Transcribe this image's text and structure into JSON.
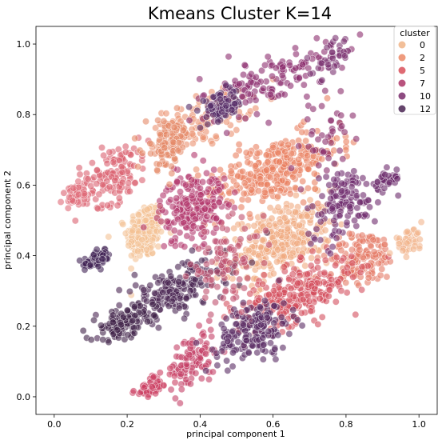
{
  "chart_data": {
    "type": "scatter",
    "title": "Kmeans Cluster K=14",
    "xlabel": "principal component 1",
    "ylabel": "principal component 2",
    "xlim": [
      -0.05,
      1.05
    ],
    "ylim": [
      -0.05,
      1.05
    ],
    "xticks": [
      "0.0",
      "0.2",
      "0.4",
      "0.6",
      "0.8",
      "1.0"
    ],
    "yticks": [
      "0.0",
      "0.2",
      "0.4",
      "0.6",
      "0.8",
      "1.0"
    ],
    "grid": false,
    "legend": {
      "title": "cluster",
      "placement": "top-right",
      "entries": [
        {
          "label": "0",
          "color": "#f0b487"
        },
        {
          "label": "2",
          "color": "#ec8a67"
        },
        {
          "label": "5",
          "color": "#d9505a"
        },
        {
          "label": "7",
          "color": "#ad3567"
        },
        {
          "label": "10",
          "color": "#792b6b"
        },
        {
          "label": "12",
          "color": "#4a2552"
        }
      ]
    },
    "clusters": [
      {
        "id": 0,
        "color": "#f4c194",
        "cx": 0.25,
        "cy": 0.47,
        "sx": 0.025,
        "sy": 0.04,
        "n": 220
      },
      {
        "id": 1,
        "color": "#f0aa80",
        "cx": 0.62,
        "cy": 0.44,
        "sx": 0.07,
        "sy": 0.05,
        "n": 320
      },
      {
        "id": 2,
        "color": "#eb9170",
        "cx": 0.42,
        "cy": 0.79,
        "sx": 0.06,
        "sy": 0.035,
        "n": 120
      },
      {
        "id": 3,
        "color": "#e98060",
        "cx": 0.6,
        "cy": 0.64,
        "sx": 0.09,
        "sy": 0.045,
        "n": 300
      },
      {
        "id": 4,
        "color": "#e57a66",
        "cx": 0.84,
        "cy": 0.39,
        "sx": 0.05,
        "sy": 0.04,
        "n": 140
      },
      {
        "id": 5,
        "color": "#db6070",
        "cx": 0.16,
        "cy": 0.63,
        "sx": 0.05,
        "sy": 0.04,
        "n": 140
      },
      {
        "id": 6,
        "color": "#d44e5e",
        "cx": 0.66,
        "cy": 0.29,
        "sx": 0.08,
        "sy": 0.04,
        "n": 280
      },
      {
        "id": 7,
        "color": "#c54168",
        "cx": 0.38,
        "cy": 0.1,
        "sx": 0.03,
        "sy": 0.04,
        "n": 110
      },
      {
        "id": 8,
        "color": "#b2376c",
        "cx": 0.38,
        "cy": 0.54,
        "sx": 0.045,
        "sy": 0.05,
        "n": 220
      },
      {
        "id": 9,
        "color": "#8c2d6e",
        "cx": 0.58,
        "cy": 0.89,
        "sx": 0.09,
        "sy": 0.04,
        "n": 150
      },
      {
        "id": 10,
        "color": "#6e2a6c",
        "cx": 0.79,
        "cy": 0.55,
        "sx": 0.05,
        "sy": 0.05,
        "n": 130
      },
      {
        "id": 11,
        "color": "#582a62",
        "cx": 0.55,
        "cy": 0.19,
        "sx": 0.05,
        "sy": 0.04,
        "n": 180
      },
      {
        "id": 12,
        "color": "#4a2552",
        "cx": 0.33,
        "cy": 0.3,
        "sx": 0.07,
        "sy": 0.035,
        "n": 200
      },
      {
        "id": 13,
        "color": "#3f2148",
        "cx": 0.19,
        "cy": 0.21,
        "sx": 0.04,
        "sy": 0.02,
        "n": 120
      },
      {
        "id": 14,
        "color": "#e06a78",
        "cx": 0.06,
        "cy": 0.57,
        "sx": 0.02,
        "sy": 0.015,
        "n": 60
      },
      {
        "id": 15,
        "color": "#cb3f63",
        "cx": 0.27,
        "cy": 0.03,
        "sx": 0.025,
        "sy": 0.015,
        "n": 60
      },
      {
        "id": 16,
        "color": "#c0506e",
        "cx": 0.47,
        "cy": 0.38,
        "sx": 0.05,
        "sy": 0.05,
        "n": 90
      },
      {
        "id": 17,
        "color": "#f2b48c",
        "cx": 0.97,
        "cy": 0.44,
        "sx": 0.02,
        "sy": 0.015,
        "n": 40
      },
      {
        "id": 18,
        "color": "#6a2a6a",
        "cx": 0.91,
        "cy": 0.61,
        "sx": 0.02,
        "sy": 0.015,
        "n": 40
      },
      {
        "id": 19,
        "color": "#532a66",
        "cx": 0.46,
        "cy": 0.82,
        "sx": 0.03,
        "sy": 0.02,
        "n": 70
      },
      {
        "id": 20,
        "color": "#7a3070",
        "cx": 0.76,
        "cy": 0.96,
        "sx": 0.025,
        "sy": 0.025,
        "n": 40
      },
      {
        "id": 21,
        "color": "#3f2154",
        "cx": 0.12,
        "cy": 0.39,
        "sx": 0.02,
        "sy": 0.012,
        "n": 60
      },
      {
        "id": 22,
        "color": "#e58868",
        "cx": 0.31,
        "cy": 0.72,
        "sx": 0.03,
        "sy": 0.035,
        "n": 100
      },
      {
        "id": 23,
        "color": "#8a2d6a",
        "cx": 0.75,
        "cy": 0.73,
        "sx": 0.03,
        "sy": 0.05,
        "n": 40
      }
    ]
  }
}
